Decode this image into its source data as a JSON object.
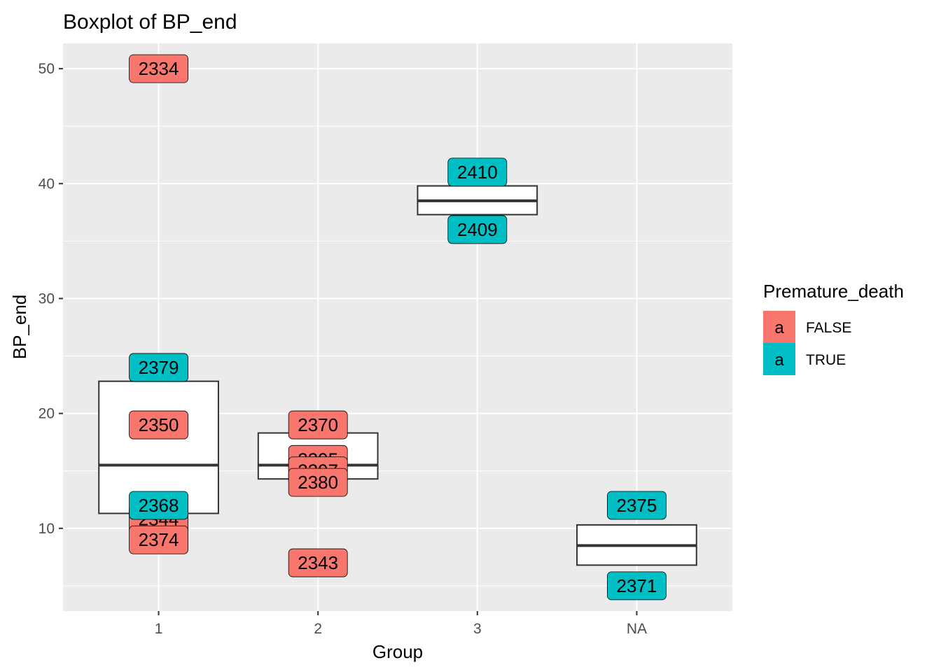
{
  "chart_data": {
    "type": "boxplot",
    "title": "Boxplot of  BP_end",
    "xlabel": "Group",
    "ylabel": "BP_end",
    "categories": [
      "1",
      "2",
      "3",
      "NA"
    ],
    "ylim": [
      2.8,
      52.2
    ],
    "yticks": [
      10,
      20,
      30,
      40,
      50
    ],
    "grid": true,
    "boxes": [
      {
        "group": "1",
        "q1": 11.3,
        "median": 15.5,
        "q3": 22.8
      },
      {
        "group": "2",
        "q1": 14.3,
        "median": 15.5,
        "q3": 18.3
      },
      {
        "group": "3",
        "q1": 37.3,
        "median": 38.5,
        "q3": 39.8
      },
      {
        "group": "NA",
        "q1": 6.8,
        "median": 8.5,
        "q3": 10.3
      }
    ],
    "points": [
      {
        "group": "1",
        "y": 50.0,
        "label": "2334",
        "premature_death": "FALSE"
      },
      {
        "group": "1",
        "y": 24.0,
        "label": "2379",
        "premature_death": "TRUE"
      },
      {
        "group": "1",
        "y": 19.0,
        "label": "2350",
        "premature_death": "FALSE"
      },
      {
        "group": "1",
        "y": 10.8,
        "label": "2344",
        "premature_death": "FALSE"
      },
      {
        "group": "1",
        "y": 12.0,
        "label": "2368",
        "premature_death": "TRUE"
      },
      {
        "group": "1",
        "y": 9.0,
        "label": "2374",
        "premature_death": "FALSE"
      },
      {
        "group": "2",
        "y": 19.0,
        "label": "2370",
        "premature_death": "FALSE"
      },
      {
        "group": "2",
        "y": 16.0,
        "label": "2395",
        "premature_death": "FALSE"
      },
      {
        "group": "2",
        "y": 15.0,
        "label": "2397",
        "premature_death": "FALSE"
      },
      {
        "group": "2",
        "y": 14.0,
        "label": "2380",
        "premature_death": "FALSE"
      },
      {
        "group": "2",
        "y": 7.0,
        "label": "2343",
        "premature_death": "FALSE"
      },
      {
        "group": "3",
        "y": 41.0,
        "label": "2410",
        "premature_death": "TRUE"
      },
      {
        "group": "3",
        "y": 36.0,
        "label": "2409",
        "premature_death": "TRUE"
      },
      {
        "group": "NA",
        "y": 12.0,
        "label": "2375",
        "premature_death": "TRUE"
      },
      {
        "group": "NA",
        "y": 5.0,
        "label": "2371",
        "premature_death": "TRUE"
      }
    ],
    "legend": {
      "title": "Premature_death",
      "placement": "right",
      "key_glyph": "a",
      "entries": [
        {
          "label": "FALSE",
          "color": "#F8766D"
        },
        {
          "label": "TRUE",
          "color": "#00BFC4"
        }
      ]
    },
    "colors": {
      "panel_background": "#EBEBEB",
      "grid": "#FFFFFF",
      "box_outline": "#333333"
    }
  }
}
